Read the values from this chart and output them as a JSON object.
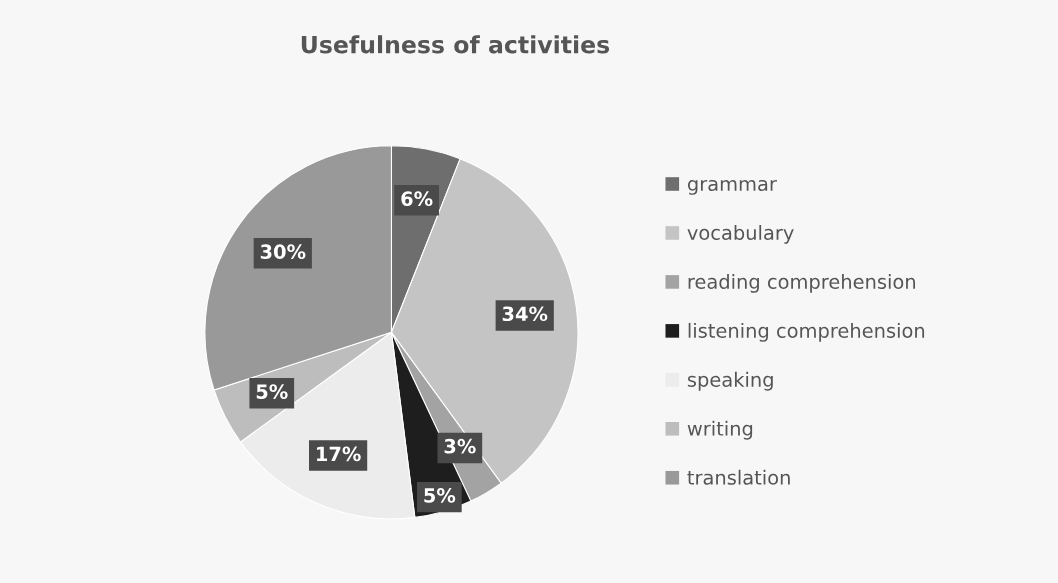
{
  "chart_data": {
    "type": "pie",
    "title": "Usefulness of activities",
    "categories": [
      "grammar",
      "vocabulary",
      "reading comprehension",
      "listening comprehension",
      "speaking",
      "writing",
      "translation"
    ],
    "values": [
      6,
      34,
      3,
      5,
      17,
      5,
      30
    ],
    "value_labels": [
      "6%",
      "34%",
      "3%",
      "5%",
      "17%",
      "5%",
      "30%"
    ],
    "colors": [
      "#6e6e6e",
      "#c4c4c4",
      "#a3a3a3",
      "#1e1e1e",
      "#ececec",
      "#bdbdbd",
      "#999999"
    ],
    "legend": "right"
  }
}
